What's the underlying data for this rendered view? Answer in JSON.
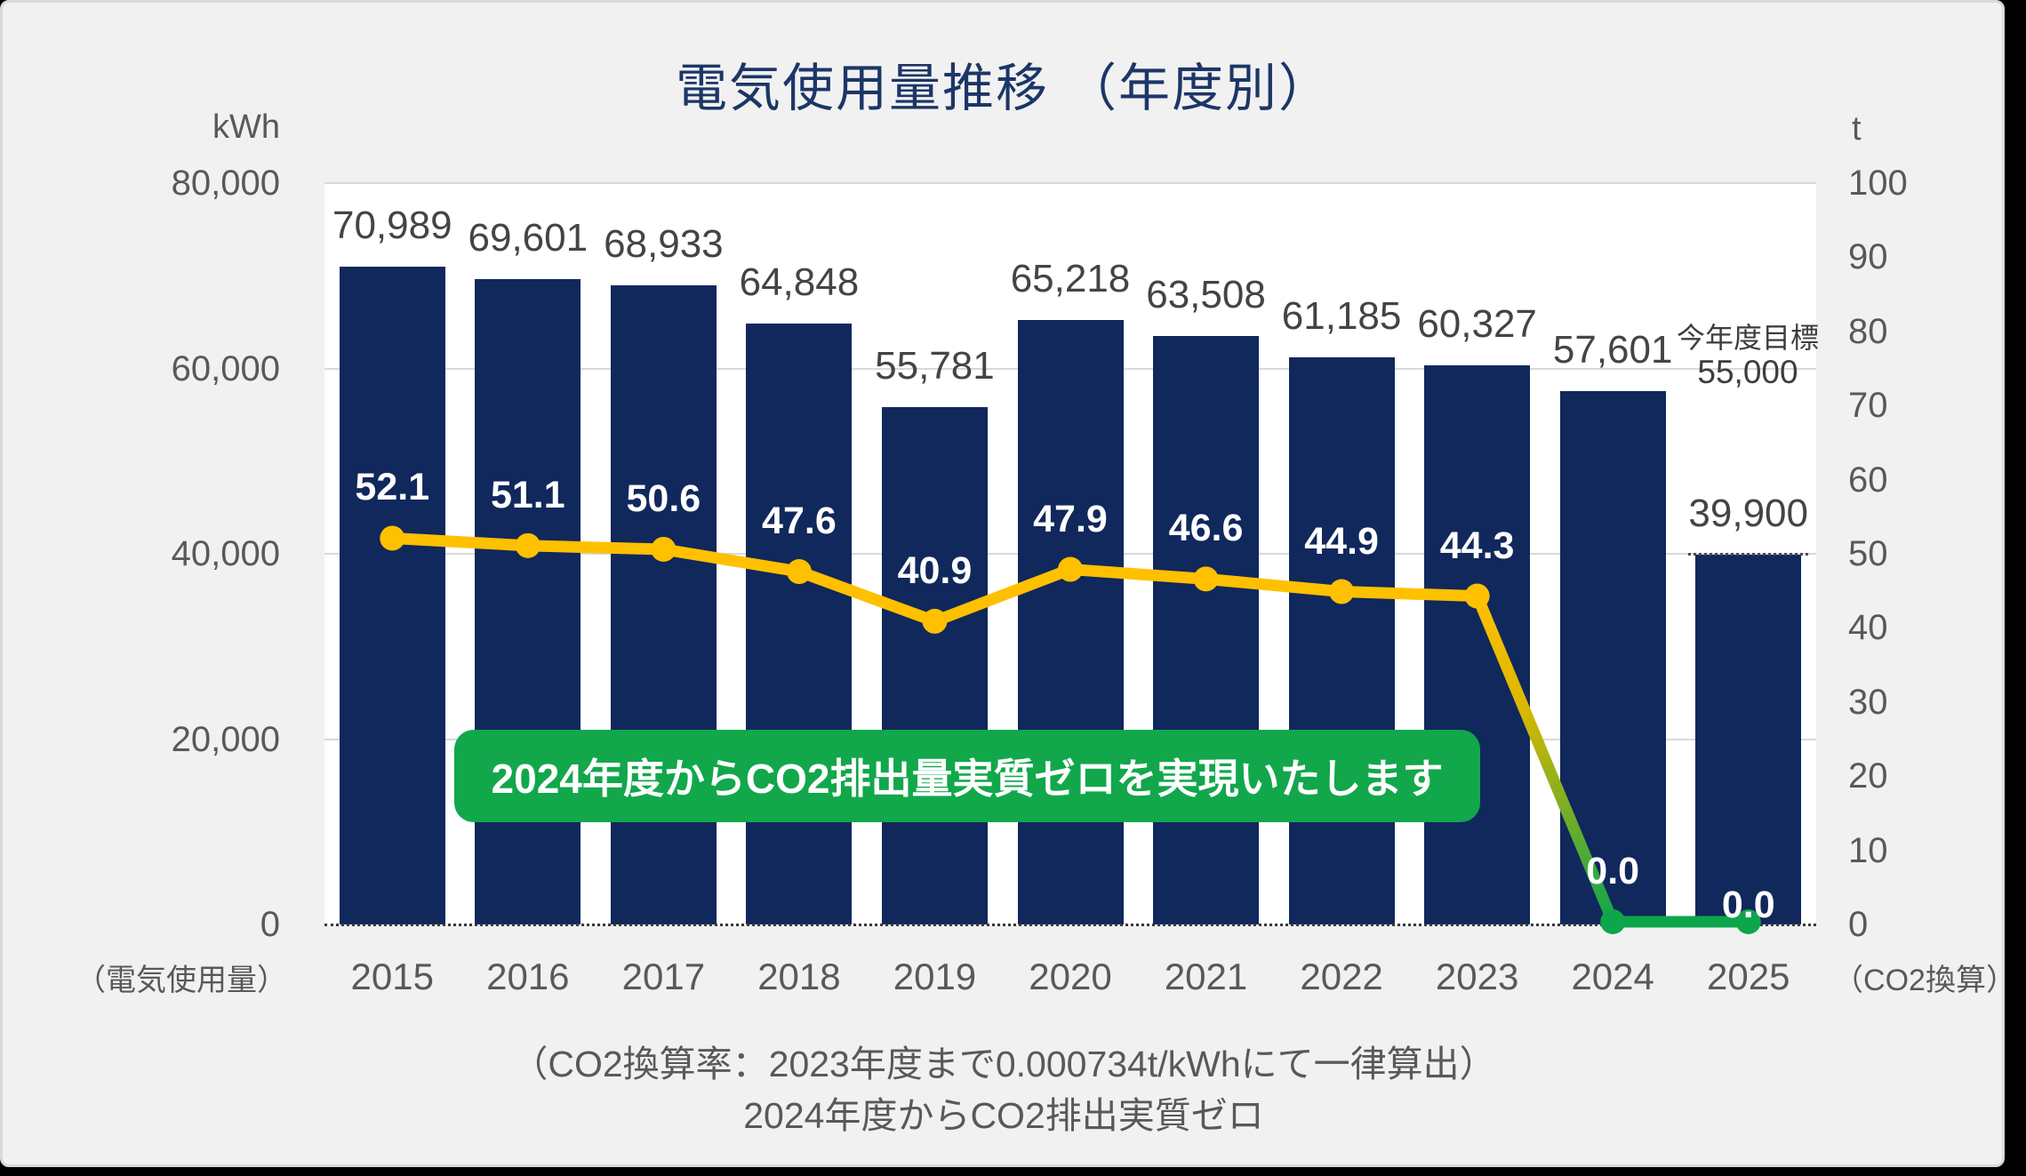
{
  "title": "電気使用量推移 （年度別）",
  "left_axis": {
    "unit": "kWh",
    "tick_labels": [
      "80,000",
      "60,000",
      "40,000",
      "20,000",
      "0"
    ],
    "caption": "（電気使用量）"
  },
  "right_axis": {
    "unit": "t",
    "tick_labels": [
      "100",
      "90",
      "80",
      "70",
      "60",
      "50",
      "40",
      "30",
      "20",
      "10",
      "0"
    ],
    "caption": "（CO2換算）"
  },
  "banner": {
    "text": "2024年度からCO2排出量実質ゼロを実現いたします"
  },
  "target_note": {
    "line1": "今年度目標",
    "line2": "55,000"
  },
  "footer": {
    "line1": "（CO2換算率：2023年度まで0.000734t/kWhにて一律算出）",
    "line2": "2024年度からCO2排出実質ゼロ"
  },
  "chart_data": {
    "type": "bar",
    "title": "電気使用量推移 （年度別）",
    "categories": [
      "2015",
      "2016",
      "2017",
      "2018",
      "2019",
      "2020",
      "2021",
      "2022",
      "2023",
      "2024",
      "2025"
    ],
    "series": [
      {
        "name": "電気使用量",
        "type": "bar",
        "axis": "left",
        "unit": "kWh",
        "values": [
          70989,
          69601,
          68933,
          64848,
          55781,
          65218,
          63508,
          61185,
          60327,
          57601,
          39900
        ],
        "value_labels": [
          "70,989",
          "69,601",
          "68,933",
          "64,848",
          "55,781",
          "65,218",
          "63,508",
          "61,185",
          "60,327",
          "57,601",
          "39,900"
        ]
      },
      {
        "name": "CO2換算",
        "type": "line",
        "axis": "right",
        "unit": "t",
        "values": [
          52.1,
          51.1,
          50.6,
          47.6,
          40.9,
          47.9,
          46.6,
          44.9,
          44.3,
          0.0,
          0.0
        ],
        "value_labels": [
          "52.1",
          "51.1",
          "50.6",
          "47.6",
          "40.9",
          "47.9",
          "46.6",
          "44.9",
          "44.3",
          "0.0",
          "0.0"
        ]
      }
    ],
    "left_ylim": [
      0,
      80000
    ],
    "right_ylim": [
      0,
      100
    ],
    "grid": true,
    "legend": "none",
    "annotations": {
      "current_year_target_kwh": 55000,
      "forecast_bar_category": "2025",
      "co2_zero_from": "2024"
    },
    "colors": {
      "background": "#F1F1F1",
      "plot_background": "#FFFFFF",
      "bar": "#10285C",
      "line_main": "#FFC000",
      "line_zero": "#0DA64A",
      "banner_bg": "#12A74B",
      "title_text": "#1C3667",
      "axis_text": "#595959"
    }
  }
}
